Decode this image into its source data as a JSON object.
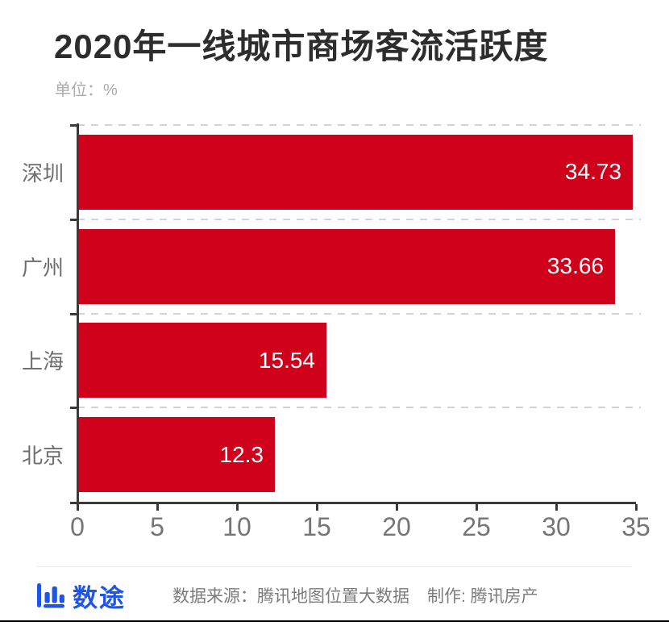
{
  "title": "2020年一线城市商场客流活跃度",
  "subtitle": "单位：%",
  "chart_data": {
    "type": "bar",
    "orientation": "horizontal",
    "title": "2020年一线城市商场客流活跃度",
    "unit": "%",
    "categories": [
      "深圳",
      "广州",
      "上海",
      "北京"
    ],
    "values": [
      34.73,
      33.66,
      15.54,
      12.3
    ],
    "value_labels": [
      "34.73",
      "33.66",
      "15.54",
      "12.3"
    ],
    "xlim": [
      0,
      35
    ],
    "x_ticks": [
      0,
      5,
      10,
      15,
      20,
      25,
      30,
      35
    ],
    "grid": "dashed horizontal separators between category rows",
    "legend": "none",
    "bar_color": "#d0021b",
    "value_label_color": "#ffffff"
  },
  "footer": {
    "logo_icon": "bar-chart-icon",
    "logo_text": "数途",
    "source_text": "数据来源：腾讯地图位置大数据",
    "credit_text": "制作: 腾讯房产"
  },
  "colors": {
    "bar": "#d0021b",
    "logo_blue": "#1e55e6",
    "axis": "#3a3a3a",
    "title_text": "#2d2d2d",
    "muted_text": "#757575",
    "background": "#ffffff"
  }
}
